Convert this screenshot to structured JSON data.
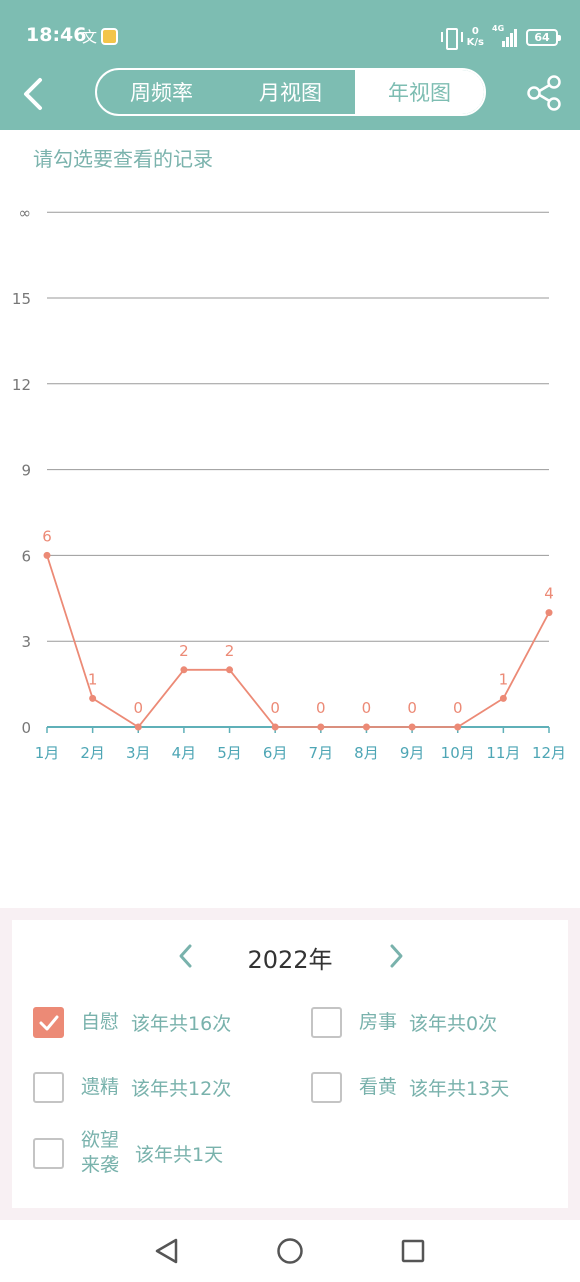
{
  "status_bar": {
    "time": "18:46",
    "notification_glyph": "文",
    "net_speed_value": "0",
    "net_speed_unit": "K/s",
    "network_type": "4G",
    "battery": "64"
  },
  "header": {
    "tabs": [
      {
        "label": "周频率",
        "active": false
      },
      {
        "label": "月视图",
        "active": false
      },
      {
        "label": "年视图",
        "active": true
      }
    ],
    "back_icon": "chevron-left-icon",
    "share_icon": "share-icon"
  },
  "hint_text": "请勾选要查看的记录",
  "chart_data": {
    "type": "line",
    "categories": [
      "1月",
      "2月",
      "3月",
      "4月",
      "5月",
      "6月",
      "7月",
      "8月",
      "9月",
      "10月",
      "11月",
      "12月"
    ],
    "series": [
      {
        "values": [
          6,
          1,
          0,
          2,
          2,
          0,
          0,
          0,
          0,
          0,
          1,
          4
        ],
        "color": "#ec8a76"
      }
    ],
    "y_tick_labels": [
      "0",
      "3",
      "6",
      "9",
      "12",
      "15",
      "∞"
    ],
    "ylim": [
      0,
      18
    ],
    "grid": true,
    "axis_color": "#5fb0b8",
    "grid_color": "#9a9a9a"
  },
  "panel": {
    "year": "2022年",
    "options": [
      {
        "label": "自慰",
        "count": "该年共16次",
        "checked": true
      },
      {
        "label": "房事",
        "count": "该年共0次",
        "checked": false
      },
      {
        "label": "遗精",
        "count": "该年共12次",
        "checked": false
      },
      {
        "label": "看黄",
        "count": "该年共13天",
        "checked": false
      },
      {
        "label_line1": "欲望",
        "label_line2": "来袭",
        "count": "该年共1天",
        "checked": false
      }
    ]
  },
  "colors": {
    "header": "#7dbdb2",
    "accent_text": "#79b2ac",
    "checked": "#ec8a76",
    "panel_bg": "#f8f0f3"
  }
}
